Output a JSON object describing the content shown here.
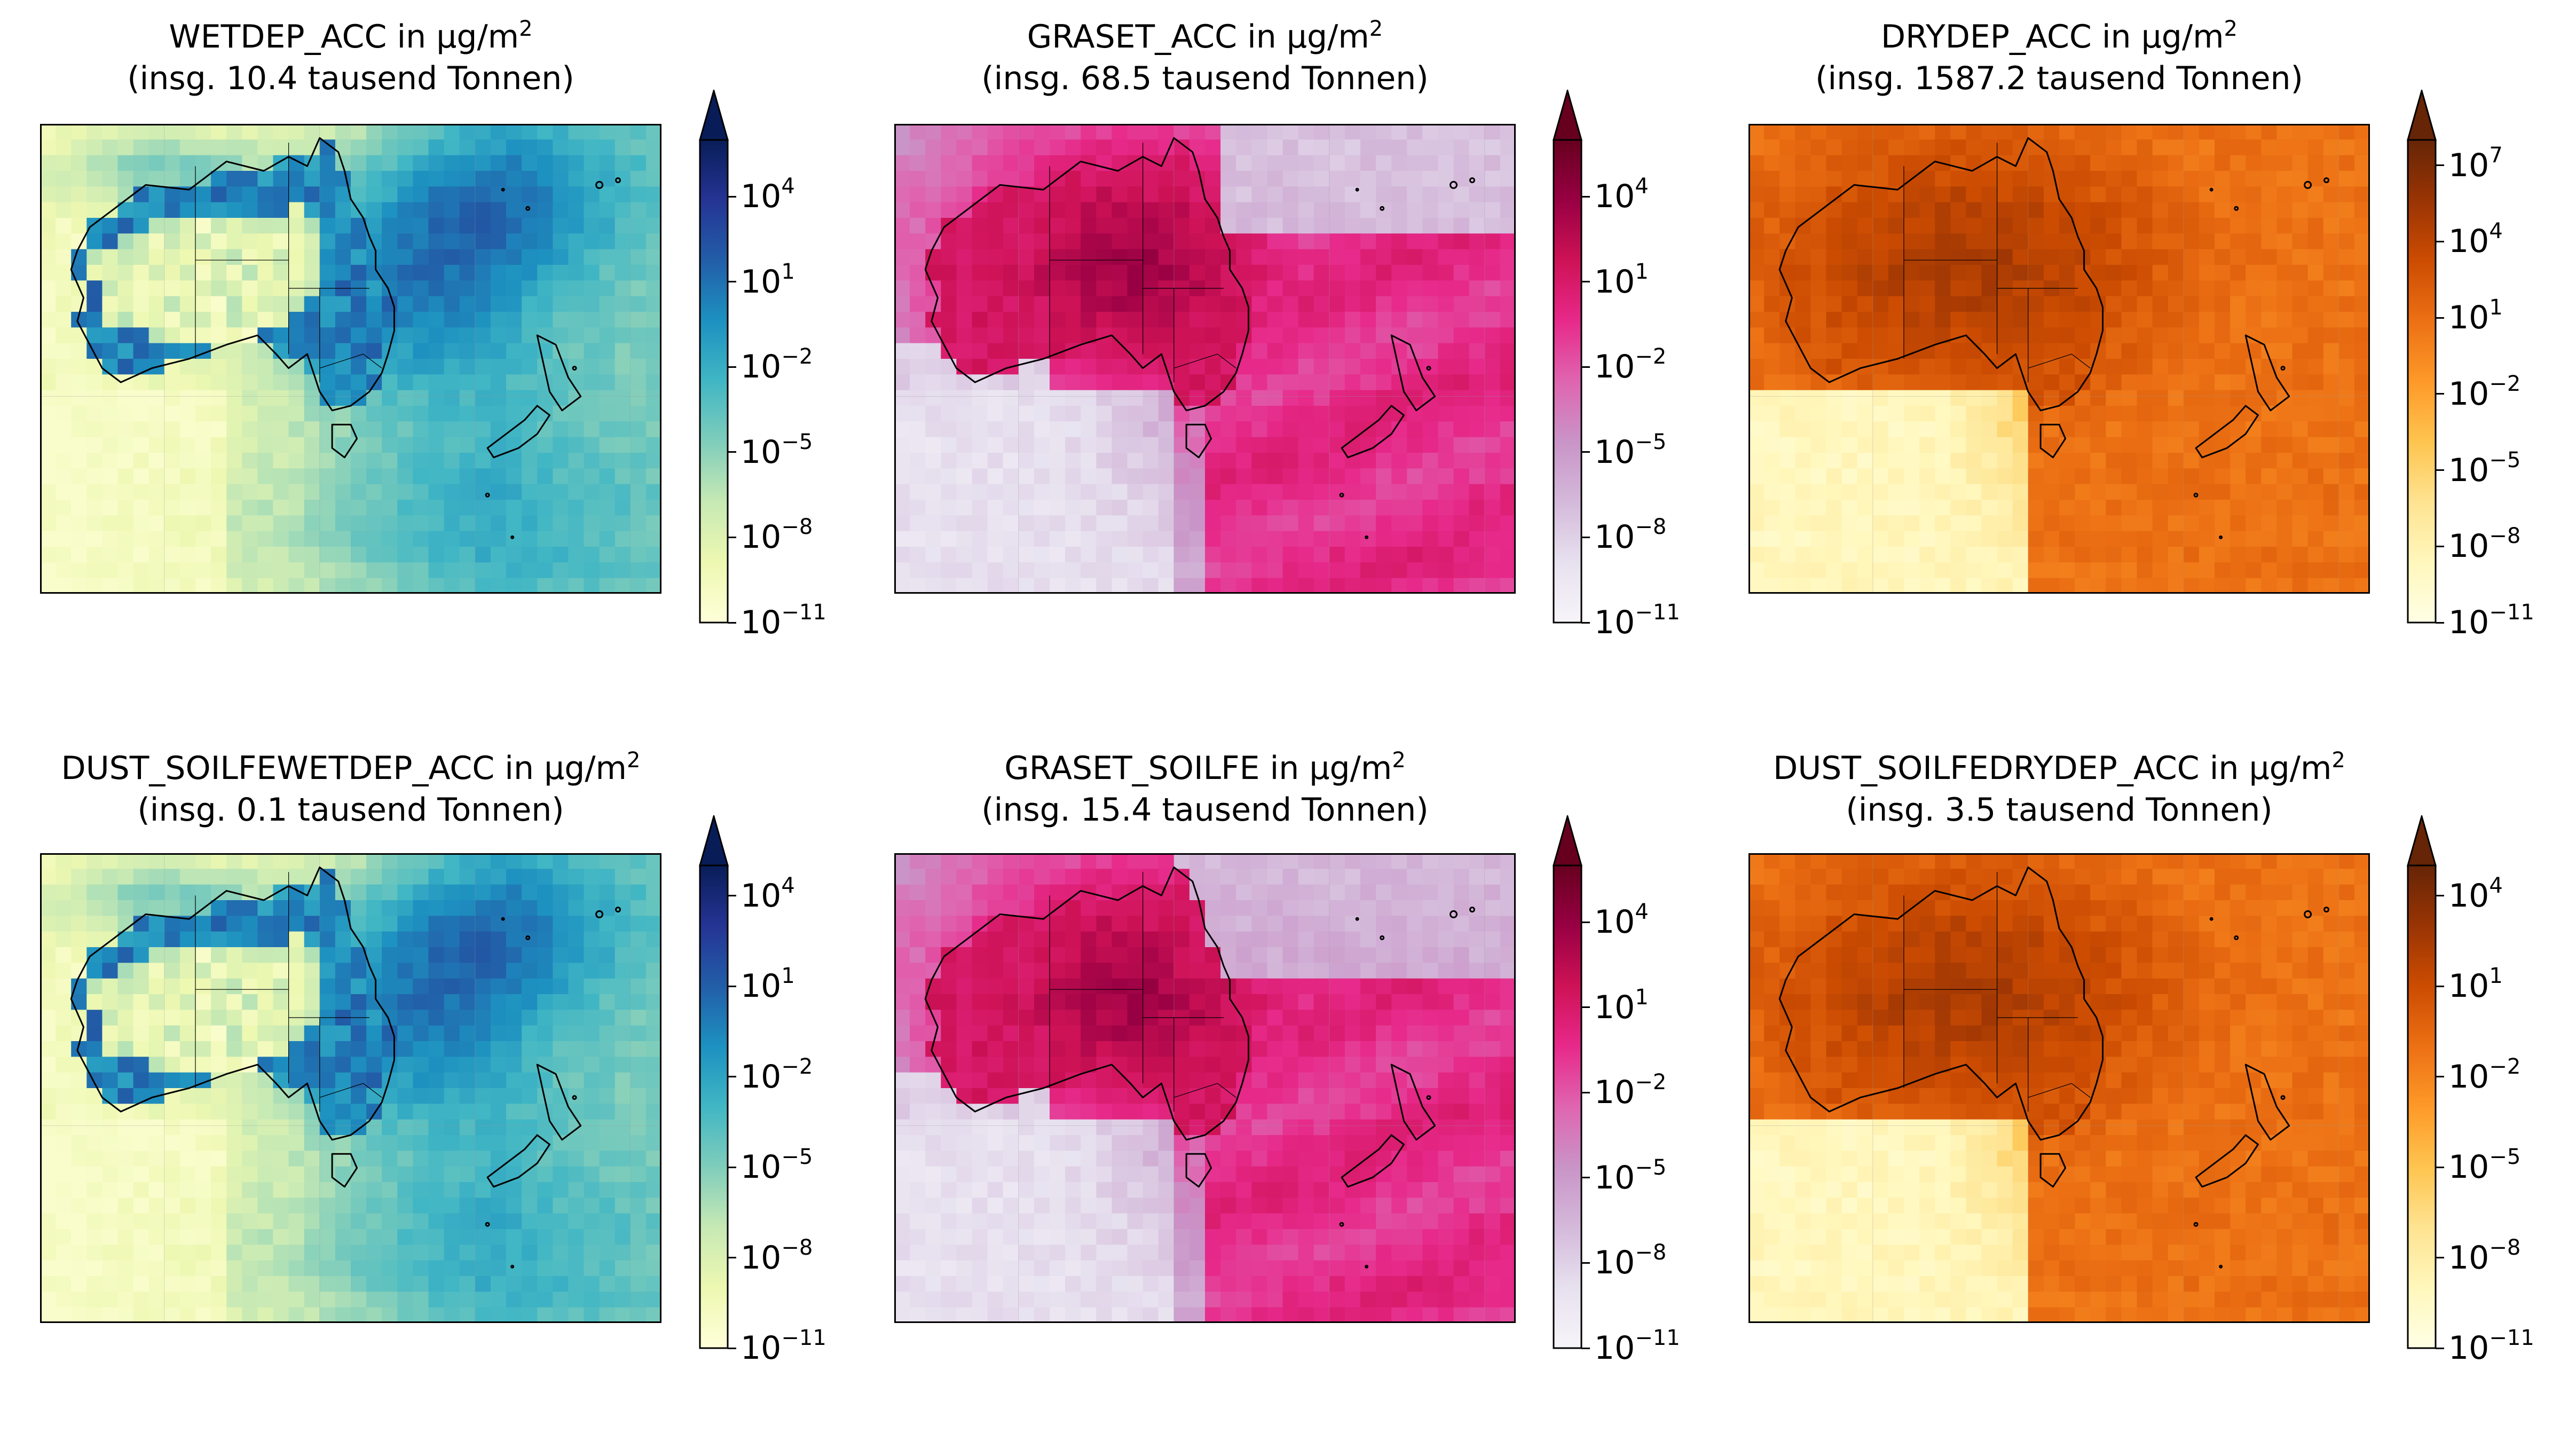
{
  "figure": {
    "unit_label": "in μg/m",
    "unit_exp": "2",
    "colorbar_scale": "log",
    "grid": true
  },
  "chart_data": [
    {
      "type": "heatmap",
      "title": "WETDEP_ACC in μg/m²",
      "name": "WETDEP_ACC",
      "subtitle": "(insg. 10.4 tausend Tonnen)",
      "colormap": "YlGnBu",
      "colors": [
        "#ffffd9",
        "#edf8b1",
        "#c7e9b4",
        "#7fcdbb",
        "#41b6c4",
        "#1d91c0",
        "#225ea8",
        "#253494",
        "#081d58"
      ],
      "log_range": [
        -11,
        6
      ],
      "ticks": [
        {
          "base": "10",
          "exp": "−11",
          "v": -11
        },
        {
          "base": "10",
          "exp": "−8",
          "v": -8
        },
        {
          "base": "10",
          "exp": "−5",
          "v": -5
        },
        {
          "base": "10",
          "exp": "−2",
          "v": -2
        },
        {
          "base": "10",
          "exp": "1",
          "v": 1
        },
        {
          "base": "10",
          "exp": "4",
          "v": 4
        }
      ],
      "extend": "max",
      "map_style": "wet"
    },
    {
      "type": "heatmap",
      "title": "GRASET_ACC in μg/m²",
      "name": "GRASET_ACC",
      "subtitle": "(insg. 68.5 tausend Tonnen)",
      "colormap": "PuRd",
      "colors": [
        "#f7f4f9",
        "#e7e1ef",
        "#d4b9da",
        "#c994c7",
        "#df65b0",
        "#e7298a",
        "#ce1256",
        "#980043",
        "#67001f"
      ],
      "log_range": [
        -11,
        6
      ],
      "ticks": [
        {
          "base": "10",
          "exp": "−11",
          "v": -11
        },
        {
          "base": "10",
          "exp": "−8",
          "v": -8
        },
        {
          "base": "10",
          "exp": "−5",
          "v": -5
        },
        {
          "base": "10",
          "exp": "−2",
          "v": -2
        },
        {
          "base": "10",
          "exp": "1",
          "v": 1
        },
        {
          "base": "10",
          "exp": "4",
          "v": 4
        }
      ],
      "extend": "max",
      "map_style": "graset"
    },
    {
      "type": "heatmap",
      "title": "DRYDEP_ACC in μg/m²",
      "name": "DRYDEP_ACC",
      "subtitle": "(insg. 1587.2 tausend Tonnen)",
      "colormap": "YlOrBr",
      "colors": [
        "#ffffe5",
        "#fff7bc",
        "#fee391",
        "#fec44f",
        "#fe9929",
        "#ec7014",
        "#cc4c02",
        "#993404",
        "#662506"
      ],
      "log_range": [
        -11,
        8
      ],
      "ticks": [
        {
          "base": "10",
          "exp": "−11",
          "v": -11
        },
        {
          "base": "10",
          "exp": "−8",
          "v": -8
        },
        {
          "base": "10",
          "exp": "−5",
          "v": -5
        },
        {
          "base": "10",
          "exp": "−2",
          "v": -2
        },
        {
          "base": "10",
          "exp": "1",
          "v": 1
        },
        {
          "base": "10",
          "exp": "4",
          "v": 4
        },
        {
          "base": "10",
          "exp": "7",
          "v": 7
        }
      ],
      "extend": "max",
      "map_style": "dry"
    },
    {
      "type": "heatmap",
      "title": "DUST_SOILFEWETDEP_ACC in μg/m²",
      "name": "DUST_SOILFEWETDEP_ACC",
      "subtitle": "(insg. 0.1 tausend Tonnen)",
      "colormap": "YlGnBu",
      "colors": [
        "#ffffd9",
        "#edf8b1",
        "#c7e9b4",
        "#7fcdbb",
        "#41b6c4",
        "#1d91c0",
        "#225ea8",
        "#253494",
        "#081d58"
      ],
      "log_range": [
        -11,
        5
      ],
      "ticks": [
        {
          "base": "10",
          "exp": "−11",
          "v": -11
        },
        {
          "base": "10",
          "exp": "−8",
          "v": -8
        },
        {
          "base": "10",
          "exp": "−5",
          "v": -5
        },
        {
          "base": "10",
          "exp": "−2",
          "v": -2
        },
        {
          "base": "10",
          "exp": "1",
          "v": 1
        },
        {
          "base": "10",
          "exp": "4",
          "v": 4
        }
      ],
      "extend": "max",
      "map_style": "wet"
    },
    {
      "type": "heatmap",
      "title": "GRASET_SOILFE in μg/m²",
      "name": "GRASET_SOILFE",
      "subtitle": "(insg. 15.4 tausend Tonnen)",
      "colormap": "PuRd",
      "colors": [
        "#f7f4f9",
        "#e7e1ef",
        "#d4b9da",
        "#c994c7",
        "#df65b0",
        "#e7298a",
        "#ce1256",
        "#980043",
        "#67001f"
      ],
      "log_range": [
        -11,
        6
      ],
      "ticks": [
        {
          "base": "10",
          "exp": "−11",
          "v": -11
        },
        {
          "base": "10",
          "exp": "−8",
          "v": -8
        },
        {
          "base": "10",
          "exp": "−5",
          "v": -5
        },
        {
          "base": "10",
          "exp": "−2",
          "v": -2
        },
        {
          "base": "10",
          "exp": "1",
          "v": 1
        },
        {
          "base": "10",
          "exp": "4",
          "v": 4
        }
      ],
      "extend": "max",
      "map_style": "graset2"
    },
    {
      "type": "heatmap",
      "title": "DUST_SOILFEDRYDEP_ACC in μg/m²",
      "name": "DUST_SOILFEDRYDEP_ACC",
      "subtitle": "(insg. 3.5 tausend Tonnen)",
      "colormap": "YlOrBr",
      "colors": [
        "#ffffe5",
        "#fff7bc",
        "#fee391",
        "#fec44f",
        "#fe9929",
        "#ec7014",
        "#cc4c02",
        "#993404",
        "#662506"
      ],
      "log_range": [
        -11,
        5
      ],
      "ticks": [
        {
          "base": "10",
          "exp": "−11",
          "v": -11
        },
        {
          "base": "10",
          "exp": "−8",
          "v": -8
        },
        {
          "base": "10",
          "exp": "−5",
          "v": -5
        },
        {
          "base": "10",
          "exp": "−2",
          "v": -2
        },
        {
          "base": "10",
          "exp": "1",
          "v": 1
        },
        {
          "base": "10",
          "exp": "4",
          "v": 4
        }
      ],
      "extend": "max",
      "map_style": "dry"
    }
  ]
}
